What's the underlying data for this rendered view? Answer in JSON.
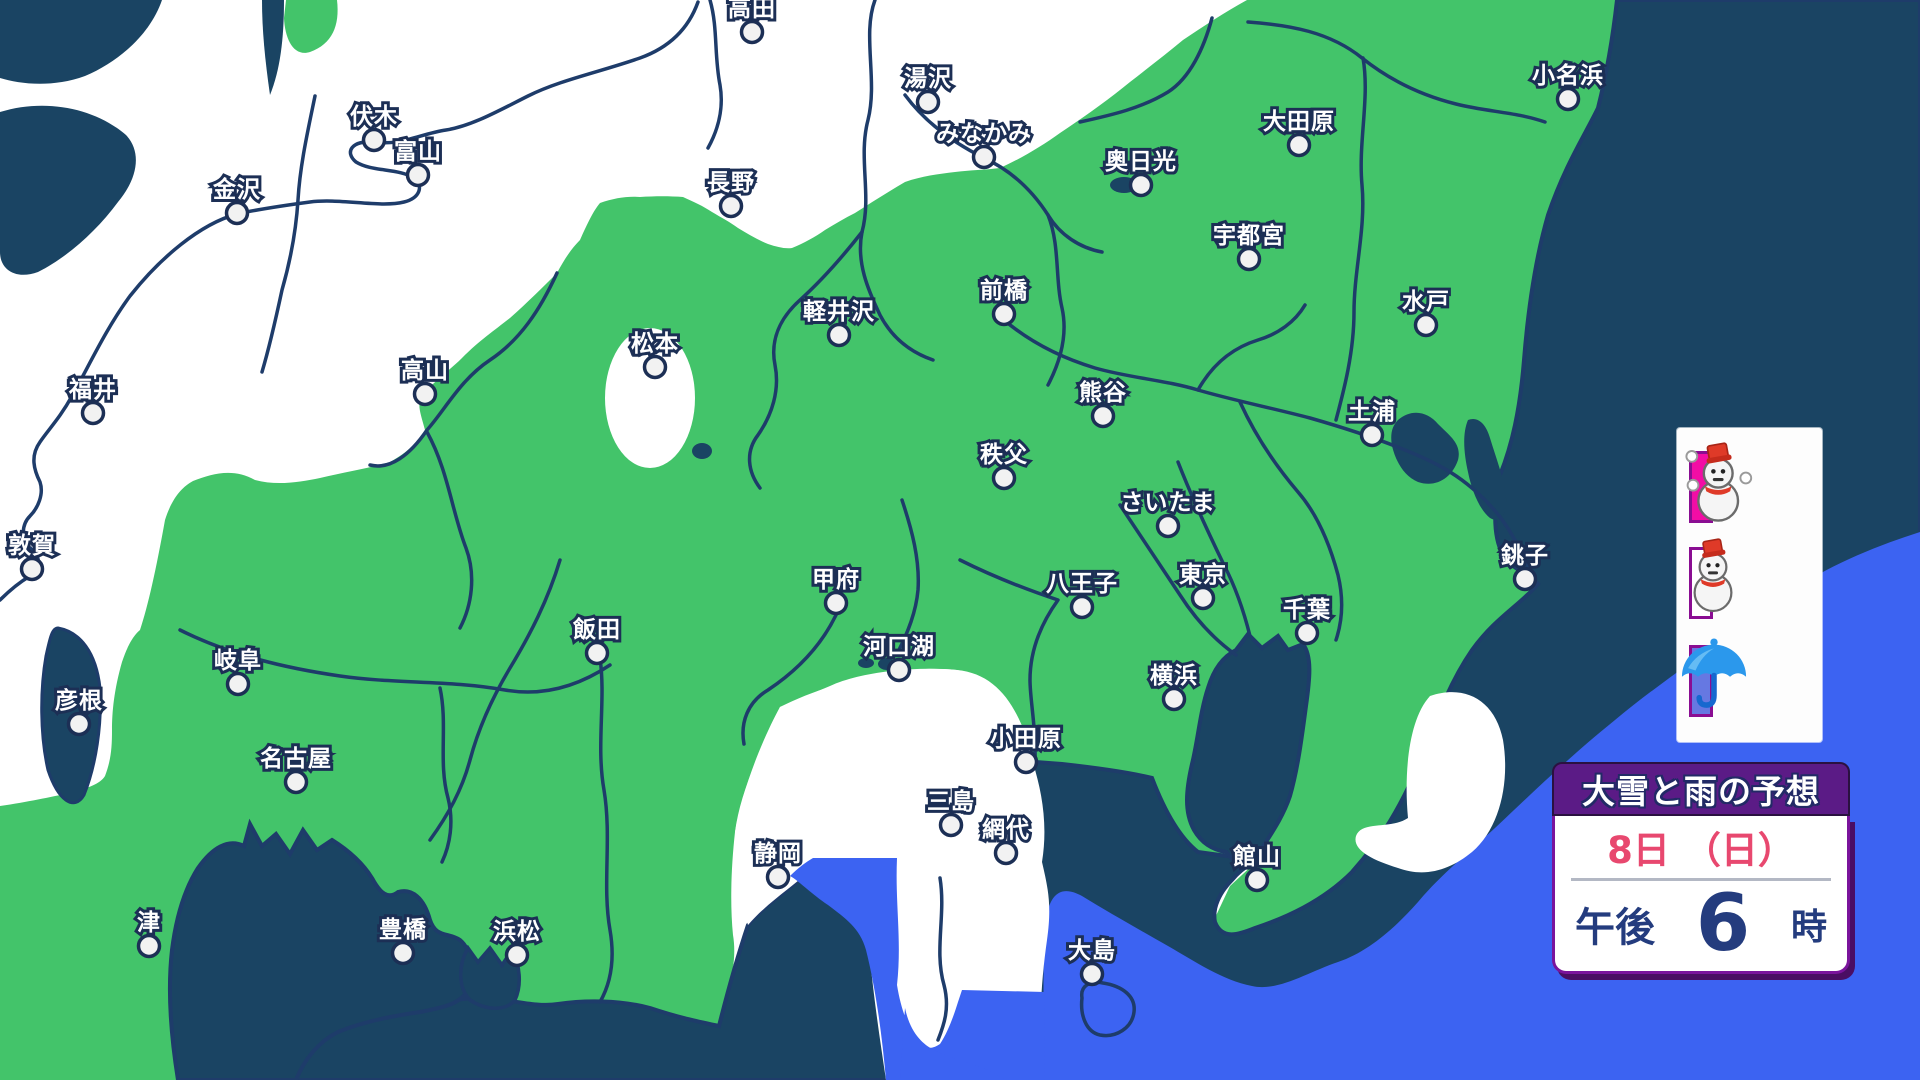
{
  "map": {
    "cities": [
      {
        "name": "高田"
      },
      {
        "name": "湯沢"
      },
      {
        "name": "みなかみ"
      },
      {
        "name": "小名浜"
      },
      {
        "name": "大田原"
      },
      {
        "name": "奥日光"
      },
      {
        "name": "宇都宮"
      },
      {
        "name": "水戸"
      },
      {
        "name": "前橋"
      },
      {
        "name": "軽井沢"
      },
      {
        "name": "長野"
      },
      {
        "name": "松本"
      },
      {
        "name": "熊谷"
      },
      {
        "name": "秩父"
      },
      {
        "name": "さいたま"
      },
      {
        "name": "土浦"
      },
      {
        "name": "銚子"
      },
      {
        "name": "東京"
      },
      {
        "name": "八王子"
      },
      {
        "name": "千葉"
      },
      {
        "name": "横浜"
      },
      {
        "name": "甲府"
      },
      {
        "name": "河口湖"
      },
      {
        "name": "小田原"
      },
      {
        "name": "三島"
      },
      {
        "name": "網代"
      },
      {
        "name": "静岡"
      },
      {
        "name": "館山"
      },
      {
        "name": "大島"
      },
      {
        "name": "高山"
      },
      {
        "name": "伏木"
      },
      {
        "name": "富山"
      },
      {
        "name": "金沢"
      },
      {
        "name": "福井"
      },
      {
        "name": "敦賀"
      },
      {
        "name": "彦根"
      },
      {
        "name": "岐阜"
      },
      {
        "name": "名古屋"
      },
      {
        "name": "津"
      },
      {
        "name": "豊橋"
      },
      {
        "name": "浜松"
      },
      {
        "name": "飯田"
      }
    ],
    "colors": {
      "no_precip_land": "#43C46A",
      "snow_area": "#FFFFFF",
      "rain_area": "#3C63F2",
      "sea": "#1A4463",
      "border_line": "#1E3C6A"
    }
  },
  "legend": {
    "items": [
      {
        "icon": "heavy-snow-snowman-icon",
        "swatch_color": "#F20DA5"
      },
      {
        "icon": "snow-snowman-icon",
        "swatch_color": "#FFFFFF"
      },
      {
        "icon": "rain-umbrella-icon",
        "swatch_color": "#6678E2"
      }
    ]
  },
  "forecast_panel": {
    "title": "大雪と雨の予想",
    "date": "8日",
    "weekday": "（日）",
    "period": "午後",
    "hour": "6",
    "hour_suffix": "時"
  }
}
